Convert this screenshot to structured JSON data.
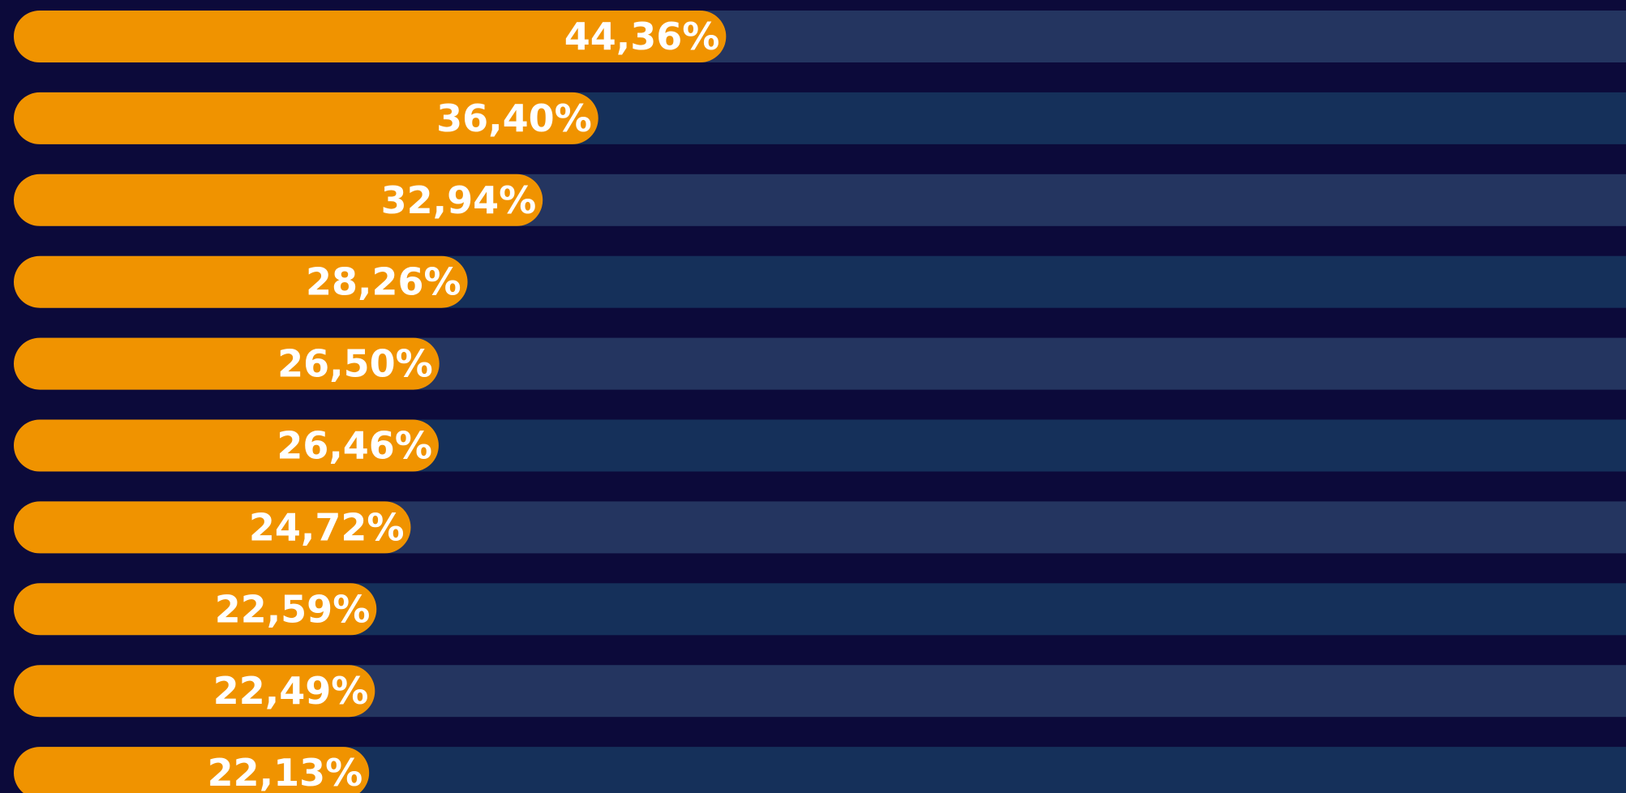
{
  "chart_data": {
    "type": "bar",
    "orientation": "horizontal",
    "values": [
      44.36,
      36.4,
      32.94,
      28.26,
      26.5,
      26.46,
      24.72,
      22.59,
      22.49,
      22.13
    ],
    "value_labels": [
      "44,36%",
      "36,40%",
      "32,94%",
      "28,26%",
      "26,50%",
      "26,46%",
      "24,72%",
      "22,59%",
      "22,49%",
      "22,13%"
    ],
    "color": "#f09300",
    "xlim": [
      0,
      100
    ]
  }
}
